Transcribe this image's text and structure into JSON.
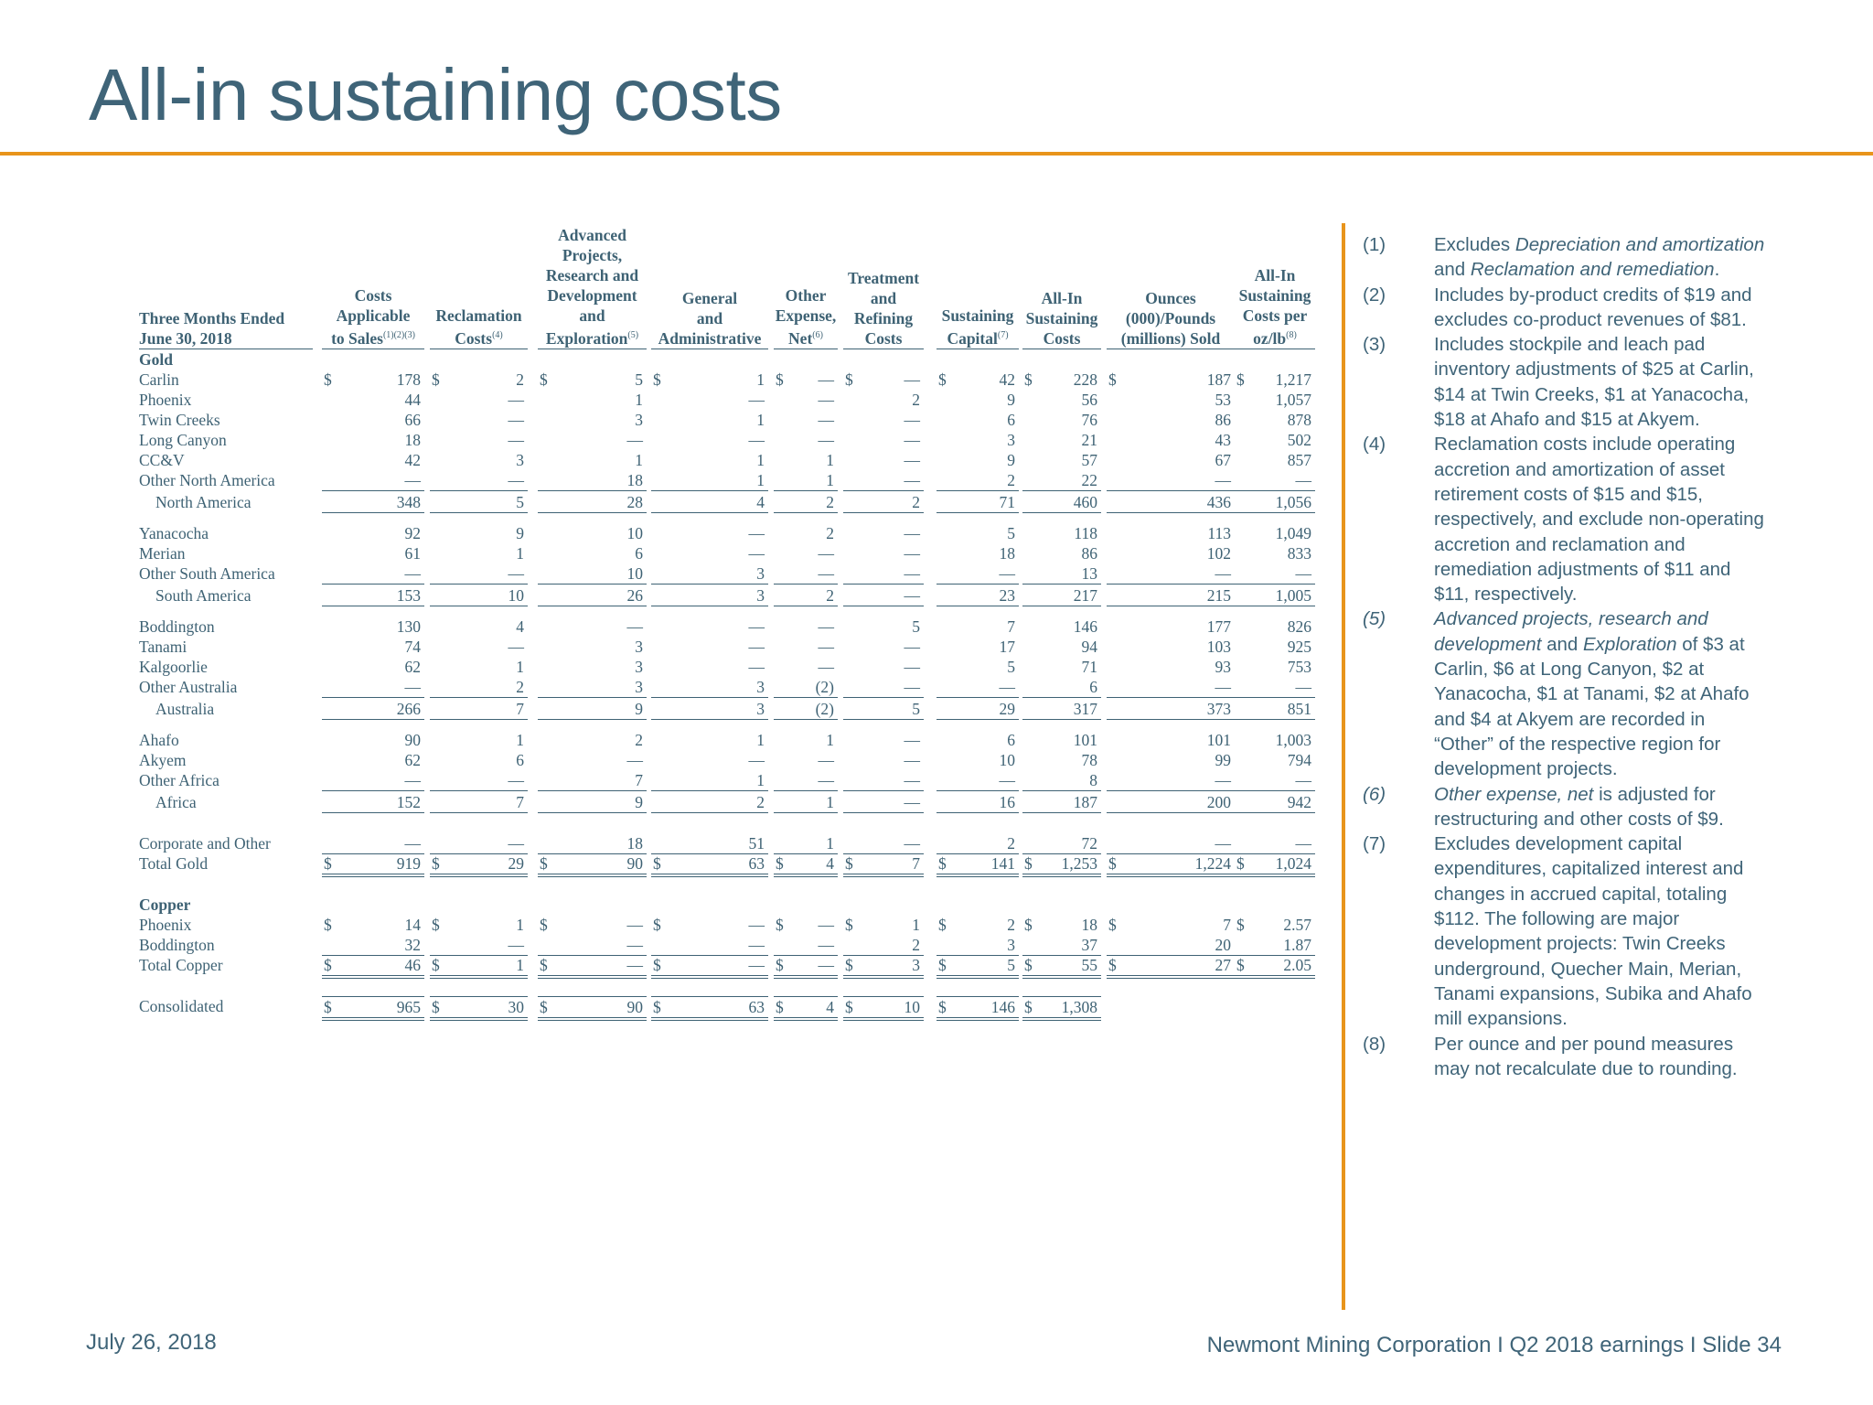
{
  "title": "All-in sustaining costs",
  "footer": {
    "date": "July 26, 2018",
    "right": "Newmont Mining Corporation  I  Q2 2018 earnings  I  Slide 34"
  },
  "table": {
    "headers": [
      {
        "label": "Three Months Ended\nJune 30, 2018",
        "sup": ""
      },
      {
        "label": "Costs\nApplicable\nto Sales",
        "sup": "(1)(2)(3)"
      },
      {
        "label": "Reclamation\nCosts",
        "sup": "(4)"
      },
      {
        "label": "Advanced\nProjects,\nResearch and\nDevelopment\nand\nExploration",
        "sup": "(5)"
      },
      {
        "label": "General\nand\nAdministrative",
        "sup": ""
      },
      {
        "label": "Other\nExpense,\nNet",
        "sup": "(6)"
      },
      {
        "label": "Treatment\nand\nRefining\nCosts",
        "sup": ""
      },
      {
        "label": "Sustaining\nCapital",
        "sup": "(7)"
      },
      {
        "label": "All-In\nSustaining\nCosts",
        "sup": ""
      },
      {
        "label": "Ounces\n(000)/Pounds\n(millions) Sold",
        "sup": ""
      },
      {
        "label": "All-In\nSustaining\nCosts per\noz/lb",
        "sup": "(8)"
      }
    ],
    "dollar": "$",
    "sections": [
      {
        "heading": "Gold",
        "rows": [
          {
            "label": "Carlin",
            "values": [
              "178",
              "2",
              "5",
              "1",
              "—",
              "—",
              "42",
              "228",
              "187",
              "1,217"
            ],
            "dollars": true
          },
          {
            "label": "Phoenix",
            "values": [
              "44",
              "—",
              "1",
              "—",
              "—",
              "2",
              "9",
              "56",
              "53",
              "1,057"
            ]
          },
          {
            "label": "Twin Creeks",
            "values": [
              "66",
              "—",
              "3",
              "1",
              "—",
              "—",
              "6",
              "76",
              "86",
              "878"
            ]
          },
          {
            "label": "Long Canyon",
            "values": [
              "18",
              "—",
              "—",
              "—",
              "—",
              "—",
              "3",
              "21",
              "43",
              "502"
            ]
          },
          {
            "label": "CC&V",
            "values": [
              "42",
              "3",
              "1",
              "1",
              "1",
              "—",
              "9",
              "57",
              "67",
              "857"
            ]
          },
          {
            "label": "Other North America",
            "values": [
              "—",
              "—",
              "18",
              "1",
              "1",
              "—",
              "2",
              "22",
              "—",
              "—"
            ],
            "ul": true
          },
          {
            "label": "North America",
            "values": [
              "348",
              "5",
              "28",
              "4",
              "2",
              "2",
              "71",
              "460",
              "436",
              "1,056"
            ],
            "sub": true
          }
        ]
      },
      {
        "heading": "",
        "rows": [
          {
            "label": "Yanacocha",
            "values": [
              "92",
              "9",
              "10",
              "—",
              "2",
              "—",
              "5",
              "118",
              "113",
              "1,049"
            ]
          },
          {
            "label": "Merian",
            "values": [
              "61",
              "1",
              "6",
              "—",
              "—",
              "—",
              "18",
              "86",
              "102",
              "833"
            ]
          },
          {
            "label": "Other South America",
            "values": [
              "—",
              "—",
              "10",
              "3",
              "—",
              "—",
              "—",
              "13",
              "—",
              "—"
            ],
            "ul": true
          },
          {
            "label": "South America",
            "values": [
              "153",
              "10",
              "26",
              "3",
              "2",
              "—",
              "23",
              "217",
              "215",
              "1,005"
            ],
            "sub": true
          }
        ]
      },
      {
        "heading": "",
        "rows": [
          {
            "label": "Boddington",
            "values": [
              "130",
              "4",
              "—",
              "—",
              "—",
              "5",
              "7",
              "146",
              "177",
              "826"
            ]
          },
          {
            "label": "Tanami",
            "values": [
              "74",
              "—",
              "3",
              "—",
              "—",
              "—",
              "17",
              "94",
              "103",
              "925"
            ]
          },
          {
            "label": "Kalgoorlie",
            "values": [
              "62",
              "1",
              "3",
              "—",
              "—",
              "—",
              "5",
              "71",
              "93",
              "753"
            ]
          },
          {
            "label": "Other Australia",
            "values": [
              "—",
              "2",
              "3",
              "3",
              "(2)",
              "—",
              "—",
              "6",
              "—",
              "—"
            ],
            "ul": true
          },
          {
            "label": "Australia",
            "values": [
              "266",
              "7",
              "9",
              "3",
              "(2)",
              "5",
              "29",
              "317",
              "373",
              "851"
            ],
            "sub": true
          }
        ]
      },
      {
        "heading": "",
        "rows": [
          {
            "label": "Ahafo",
            "values": [
              "90",
              "1",
              "2",
              "1",
              "1",
              "—",
              "6",
              "101",
              "101",
              "1,003"
            ]
          },
          {
            "label": "Akyem",
            "values": [
              "62",
              "6",
              "—",
              "—",
              "—",
              "—",
              "10",
              "78",
              "99",
              "794"
            ]
          },
          {
            "label": "Other Africa",
            "values": [
              "—",
              "—",
              "7",
              "1",
              "—",
              "—",
              "—",
              "8",
              "—",
              "—"
            ],
            "ul": true
          },
          {
            "label": "Africa",
            "values": [
              "152",
              "7",
              "9",
              "2",
              "1",
              "—",
              "16",
              "187",
              "200",
              "942"
            ],
            "sub": true
          }
        ]
      },
      {
        "heading": "",
        "rows": [
          {
            "label": "Corporate and Other",
            "values": [
              "—",
              "—",
              "18",
              "51",
              "1",
              "—",
              "2",
              "72",
              "—",
              "—"
            ],
            "ul": true
          },
          {
            "label": "Total Gold",
            "values": [
              "919",
              "29",
              "90",
              "63",
              "4",
              "7",
              "141",
              "1,253",
              "1,224",
              "1,024"
            ],
            "dollars": true,
            "dbl": true
          }
        ]
      },
      {
        "heading": "Copper",
        "rows": [
          {
            "label": "Phoenix",
            "values": [
              "14",
              "1",
              "—",
              "—",
              "—",
              "1",
              "2",
              "18",
              "7",
              "2.57"
            ],
            "dollars": true
          },
          {
            "label": "Boddington",
            "values": [
              "32",
              "—",
              "—",
              "—",
              "—",
              "2",
              "3",
              "37",
              "20",
              "1.87"
            ],
            "ul": true
          },
          {
            "label": "Total Copper",
            "values": [
              "46",
              "1",
              "—",
              "—",
              "—",
              "3",
              "5",
              "55",
              "27",
              "2.05"
            ],
            "dollars": true,
            "dbl": true
          }
        ]
      },
      {
        "heading": "",
        "rows": [
          {
            "label": "Consolidated",
            "values": [
              "965",
              "30",
              "90",
              "63",
              "4",
              "10",
              "146",
              "1,308",
              "",
              ""
            ],
            "dollars": true,
            "dbl": true,
            "tl": true
          }
        ]
      }
    ]
  },
  "notes": [
    {
      "n": "(1)",
      "html": "Excludes <i>Depreciation and amortization</i> and <i>Reclamation and remediation</i>.",
      "ital": false
    },
    {
      "n": "(2)",
      "html": "Includes by-product credits of $19 and excludes co-product revenues of $81.",
      "ital": false
    },
    {
      "n": "(3)",
      "html": "Includes stockpile and leach pad inventory adjustments of $25 at Carlin, $14 at Twin Creeks, $1 at Yanacocha, $18 at Ahafo and $15 at Akyem.",
      "ital": false
    },
    {
      "n": "(4)",
      "html": "Reclamation costs include operating accretion and amortization of asset retirement costs of $15 and $15, respectively, and exclude non-operating accretion and reclamation and remediation adjustments of $11 and $11, respectively.",
      "ital": false
    },
    {
      "n": "(5)",
      "html": "<i>Advanced projects, research and development</i> and <i>Exploration</i> of $3 at Carlin, $6 at Long Canyon, $2 at Yanacocha, $1 at Tanami, $2 at Ahafo and $4 at Akyem are recorded in “Other” of the respective region for development projects.",
      "ital": true
    },
    {
      "n": "(6)",
      "html": "<i>Other expense, net</i> is adjusted for restructuring and other costs of $9.",
      "ital": true
    },
    {
      "n": "(7)",
      "html": "Excludes development capital expenditures, capitalized interest and changes in accrued capital, totaling $112. The following are major development projects: Twin Creeks underground, Quecher Main, Merian, Tanami expansions, Subika and Ahafo mill expansions.",
      "ital": false
    },
    {
      "n": "(8)",
      "html": "Per ounce and per pound measures may not recalculate due to rounding.",
      "ital": false
    }
  ]
}
